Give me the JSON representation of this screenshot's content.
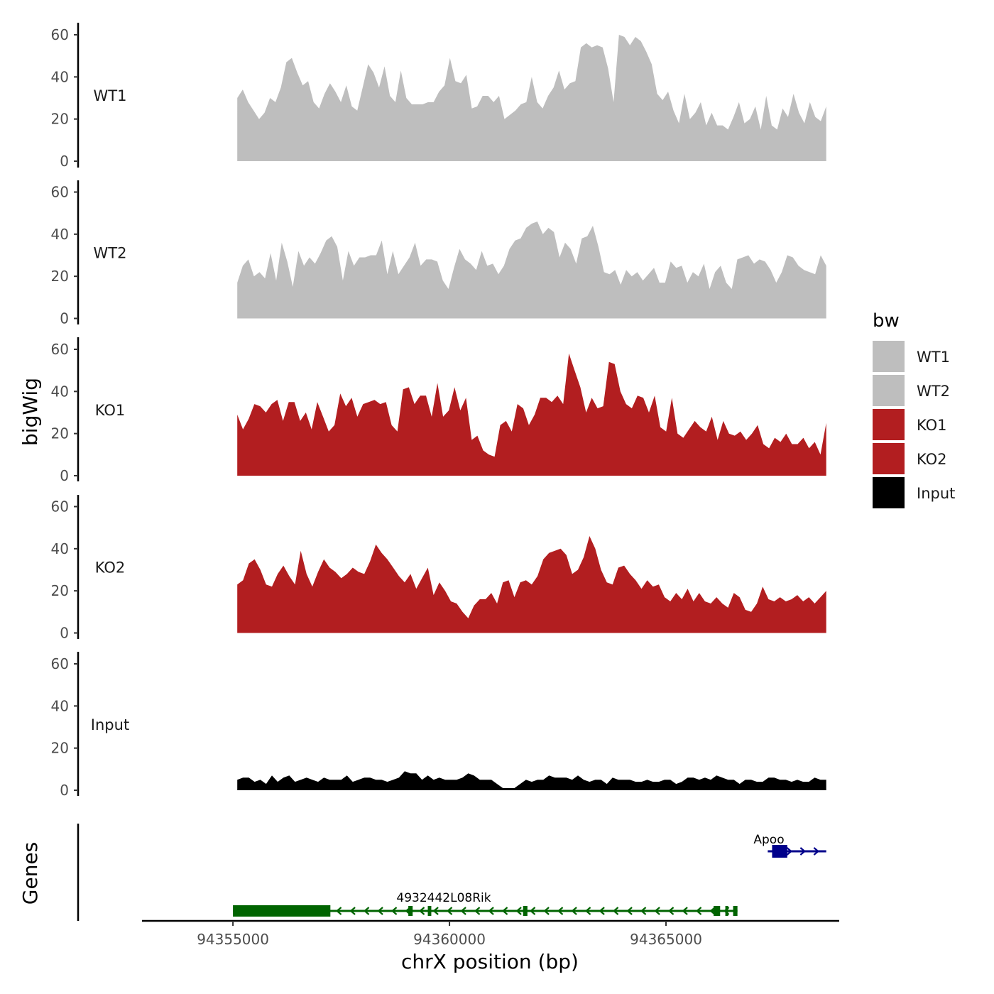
{
  "chart_data": {
    "type": "area",
    "ylabel": "bigWig",
    "xlabel": "chrX position (bp)",
    "xlim": [
      94352900,
      94369000
    ],
    "x_range_data": [
      94355100,
      94368700
    ],
    "ylim": [
      0,
      65
    ],
    "y_ticks": [
      {
        "value": 0,
        "label": "0"
      },
      {
        "value": 20,
        "label": "20"
      },
      {
        "value": 40,
        "label": "40"
      },
      {
        "value": 60,
        "label": "60"
      }
    ],
    "x_ticks": [
      {
        "value": 94355000,
        "label": "94355000"
      },
      {
        "value": 94360000,
        "label": "94360000"
      },
      {
        "value": 94365000,
        "label": "94365000"
      }
    ],
    "tracks": [
      {
        "name": "WT1",
        "color": "#bebebe",
        "values": [
          30,
          34,
          28,
          24,
          20,
          23,
          30,
          28,
          35,
          47,
          49,
          42,
          36,
          38,
          28,
          25,
          32,
          37,
          33,
          28,
          36,
          26,
          24,
          35,
          46,
          42,
          35,
          45,
          31,
          28,
          43,
          30,
          27,
          27,
          27,
          28,
          28,
          33,
          36,
          49,
          38,
          37,
          41,
          25,
          26,
          31,
          31,
          28,
          31,
          20,
          22,
          24,
          27,
          28,
          40,
          28,
          25,
          31,
          35,
          43,
          34,
          37,
          38,
          54,
          56,
          54,
          55,
          54,
          44,
          28,
          60,
          59,
          55,
          59,
          57,
          52,
          46,
          32,
          29,
          33,
          24,
          18,
          32,
          20,
          23,
          28,
          17,
          23,
          17,
          17,
          15,
          21,
          28,
          18,
          20,
          26,
          15,
          31,
          17,
          15,
          25,
          21,
          32,
          23,
          18,
          28,
          21,
          19,
          26
        ],
        "points": 109
      },
      {
        "name": "WT2",
        "color": "#bebebe",
        "values": [
          17,
          25,
          28,
          20,
          22,
          19,
          31,
          18,
          36,
          27,
          15,
          32,
          25,
          29,
          26,
          31,
          37,
          39,
          34,
          18,
          32,
          25,
          29,
          29,
          30,
          30,
          37,
          21,
          32,
          21,
          25,
          29,
          36,
          25,
          28,
          28,
          27,
          18,
          14,
          24,
          33,
          28,
          26,
          23,
          32,
          25,
          26,
          21,
          25,
          33,
          37,
          38,
          43,
          45,
          46,
          40,
          43,
          41,
          29,
          36,
          33,
          26,
          38,
          39,
          44,
          34,
          22,
          21,
          23,
          16,
          23,
          20,
          22,
          18,
          21,
          24,
          17,
          17,
          27,
          24,
          25,
          17,
          22,
          20,
          26,
          14,
          22,
          25,
          17,
          14,
          28,
          29,
          30,
          26,
          28,
          27,
          23,
          17,
          22,
          30,
          29,
          25,
          23,
          22,
          21,
          30,
          25
        ],
        "points": 107
      },
      {
        "name": "KO1",
        "color": "#b21e20",
        "values": [
          29,
          22,
          27,
          34,
          33,
          30,
          34,
          36,
          26,
          35,
          35,
          26,
          30,
          22,
          35,
          28,
          21,
          24,
          39,
          33,
          37,
          28,
          34,
          35,
          36,
          34,
          35,
          24,
          21,
          41,
          42,
          34,
          38,
          38,
          28,
          44,
          28,
          31,
          42,
          31,
          37,
          17,
          19,
          12,
          10,
          9,
          24,
          26,
          21,
          34,
          32,
          24,
          29,
          37,
          37,
          35,
          38,
          34,
          58,
          50,
          42,
          30,
          37,
          32,
          33,
          54,
          53,
          40,
          34,
          32,
          38,
          37,
          30,
          38,
          23,
          21,
          37,
          20,
          18,
          22,
          26,
          23,
          21,
          28,
          17,
          26,
          20,
          19,
          21,
          17,
          20,
          24,
          15,
          13,
          18,
          16,
          20,
          15,
          15,
          18,
          13,
          16,
          10,
          25
        ],
        "points": 104
      },
      {
        "name": "KO2",
        "color": "#b21e20",
        "values": [
          23,
          25,
          33,
          35,
          30,
          23,
          22,
          28,
          32,
          27,
          23,
          39,
          28,
          22,
          29,
          35,
          31,
          29,
          26,
          28,
          31,
          29,
          28,
          34,
          42,
          38,
          35,
          31,
          27,
          24,
          28,
          21,
          26,
          31,
          18,
          24,
          20,
          15,
          14,
          10,
          7,
          13,
          16,
          16,
          19,
          14,
          24,
          25,
          17,
          24,
          25,
          23,
          27,
          35,
          38,
          39,
          40,
          37,
          28,
          30,
          36,
          46,
          40,
          30,
          24,
          23,
          31,
          32,
          28,
          25,
          21,
          25,
          22,
          23,
          17,
          15,
          19,
          16,
          21,
          15,
          19,
          15,
          14,
          17,
          14,
          12,
          19,
          17,
          11,
          10,
          14,
          22,
          16,
          15,
          17,
          15,
          16,
          18,
          15,
          17,
          14,
          17,
          20
        ],
        "points": 103
      },
      {
        "name": "Input",
        "color": "#000000",
        "values": [
          5,
          6,
          6,
          4,
          5,
          3,
          7,
          4,
          6,
          7,
          4,
          5,
          6,
          5,
          4,
          6,
          5,
          5,
          5,
          7,
          4,
          5,
          6,
          6,
          5,
          5,
          4,
          5,
          6,
          9,
          8,
          8,
          5,
          7,
          5,
          6,
          5,
          5,
          5,
          6,
          8,
          7,
          5,
          5,
          5,
          3,
          1,
          1,
          1,
          3,
          5,
          4,
          5,
          5,
          7,
          6,
          6,
          6,
          5,
          7,
          5,
          4,
          5,
          5,
          3,
          6,
          5,
          5,
          5,
          4,
          4,
          5,
          4,
          4,
          5,
          5,
          3,
          4,
          6,
          6,
          5,
          6,
          5,
          7,
          6,
          5,
          5,
          3,
          5,
          5,
          4,
          4,
          6,
          6,
          5,
          5,
          4,
          5,
          4,
          4,
          6,
          5,
          5
        ],
        "points": 103
      }
    ],
    "genes_track": {
      "label": "Genes",
      "genes": [
        {
          "name": "4932442L08Rik",
          "strand": "-",
          "color": "#006400",
          "start": 94355000,
          "end": 94366650,
          "exons": [
            [
              94355000,
              94357250
            ],
            [
              94359050,
              94359150
            ],
            [
              94359500,
              94359580
            ],
            [
              94361700,
              94361800
            ],
            [
              94366100,
              94366250
            ],
            [
              94366370,
              94366430
            ],
            [
              94366550,
              94366650
            ]
          ]
        },
        {
          "name": "Apoo",
          "strand": "+",
          "color": "#00008b",
          "start": 94367350,
          "end": 94368700,
          "exons": [
            [
              94367450,
              94367800
            ]
          ]
        }
      ]
    },
    "legend": {
      "title": "bw",
      "position": "right",
      "items": [
        {
          "label": "WT1",
          "color": "#bebebe"
        },
        {
          "label": "WT2",
          "color": "#bebebe"
        },
        {
          "label": "KO1",
          "color": "#b21e20"
        },
        {
          "label": "KO2",
          "color": "#b21e20"
        },
        {
          "label": "Input",
          "color": "#000000"
        }
      ]
    }
  }
}
